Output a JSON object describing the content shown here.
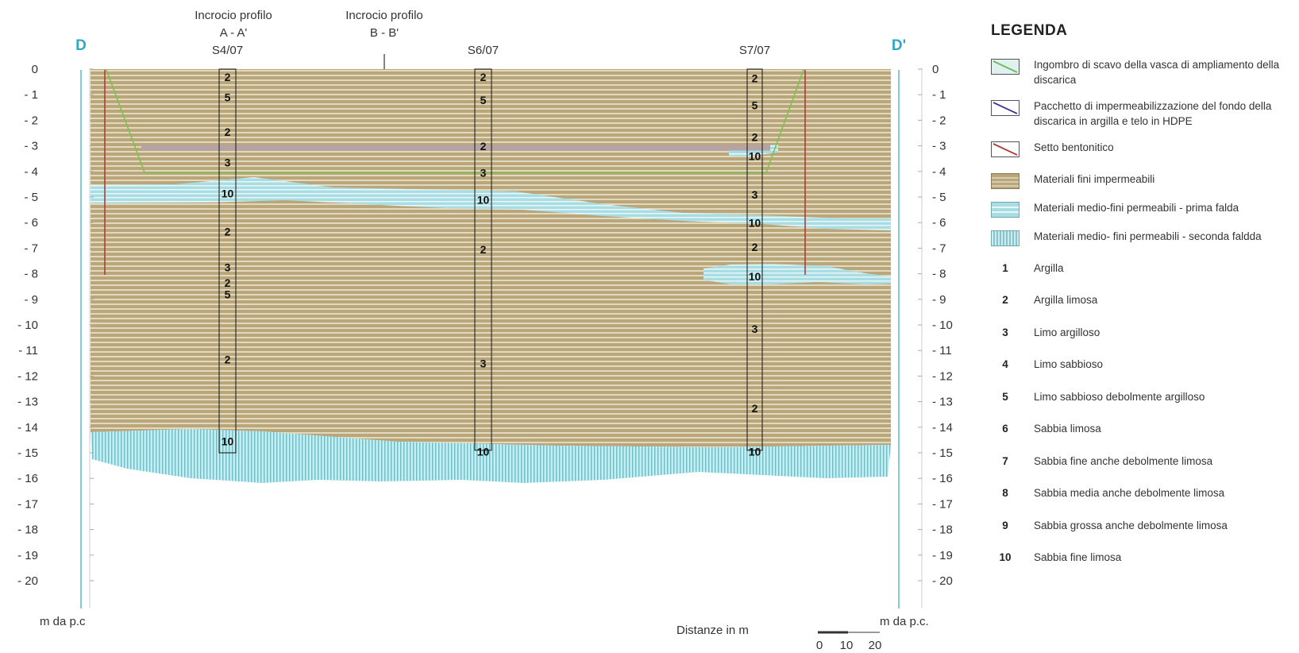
{
  "diagram": {
    "section_start": "D",
    "section_end": "D'",
    "depth_labels": [
      "0",
      "- 1",
      "- 2",
      "- 3",
      "- 4",
      "- 5",
      "- 6",
      "- 7",
      "- 8",
      "- 9",
      "- 10",
      "- 11",
      "- 12",
      "- 13",
      "- 14",
      "- 15",
      "- 16",
      "- 17",
      "- 18",
      "- 19",
      "- 20"
    ],
    "crossings": [
      {
        "line1": "Incrocio profilo",
        "line2": "A - A'"
      },
      {
        "line1": "Incrocio profilo",
        "line2": "B - B'"
      }
    ],
    "boreholes": [
      {
        "name": "S4/07",
        "codes": [
          {
            "code": "2",
            "depth": 0.15
          },
          {
            "code": "5",
            "depth": 0.95
          },
          {
            "code": "2",
            "depth": 2.3
          },
          {
            "code": "3",
            "depth": 3.5
          },
          {
            "code": "10",
            "depth": 4.7
          },
          {
            "code": "2",
            "depth": 6.2
          },
          {
            "code": "3",
            "depth": 7.6
          },
          {
            "code": "2",
            "depth": 8.2
          },
          {
            "code": "5",
            "depth": 8.65
          },
          {
            "code": "2",
            "depth": 11.2
          },
          {
            "code": "10",
            "depth": 14.4
          }
        ]
      },
      {
        "name": "S6/07",
        "codes": [
          {
            "code": "2",
            "depth": 0.15
          },
          {
            "code": "5",
            "depth": 1.05
          },
          {
            "code": "2",
            "depth": 2.85
          },
          {
            "code": "3",
            "depth": 3.9
          },
          {
            "code": "10",
            "depth": 4.95
          },
          {
            "code": "2",
            "depth": 6.9
          },
          {
            "code": "3",
            "depth": 11.35
          },
          {
            "code": "10",
            "depth": 14.8
          }
        ]
      },
      {
        "name": "S7/07",
        "codes": [
          {
            "code": "2",
            "depth": 0.2
          },
          {
            "code": "5",
            "depth": 1.25
          },
          {
            "code": "2",
            "depth": 2.5
          },
          {
            "code": "10",
            "depth": 3.25
          },
          {
            "code": "3",
            "depth": 4.75
          },
          {
            "code": "10",
            "depth": 5.85
          },
          {
            "code": "2",
            "depth": 6.8
          },
          {
            "code": "10",
            "depth": 7.95
          },
          {
            "code": "3",
            "depth": 10.0
          },
          {
            "code": "2",
            "depth": 13.1
          },
          {
            "code": "10",
            "depth": 14.8
          }
        ]
      }
    ],
    "left_axis_unit": "m da p.c",
    "right_axis_unit": "m da p.c.",
    "scale_label": "Distanze in m",
    "scale_ticks": [
      "0",
      "10",
      "20"
    ]
  },
  "legend": {
    "title": "LEGENDA",
    "symbols": [
      {
        "label": "Ingombro di scavo della vasca di ampliamento della discarica",
        "kind": "excavation",
        "color": "#6cb85a"
      },
      {
        "label": "Pacchetto di impermeabilizzazione del fondo della discarica in argilla e telo in HDPE",
        "kind": "liner",
        "color": "#3b3b8f"
      },
      {
        "label": "Setto bentonitico",
        "kind": "bentonite",
        "color": "#b23a3a"
      },
      {
        "label": "Materiali fini impermeabili",
        "kind": "fine",
        "color": "#b8a57a"
      },
      {
        "label": "Materiali medio-fini permeabili - prima falda",
        "kind": "first",
        "color": "#a9dbe0"
      },
      {
        "label": "Materiali medio- fini permeabili - seconda faldda",
        "kind": "second",
        "color": "#b4e0e6"
      }
    ],
    "codes": [
      {
        "num": "1",
        "label": "Argilla"
      },
      {
        "num": "2",
        "label": "Argilla limosa"
      },
      {
        "num": "3",
        "label": "Limo argilloso"
      },
      {
        "num": "4",
        "label": "Limo sabbioso"
      },
      {
        "num": "5",
        "label": "Limo sabbioso debolmente argilloso"
      },
      {
        "num": "6",
        "label": "Sabbia limosa"
      },
      {
        "num": "7",
        "label": "Sabbia fine anche debolmente limosa"
      },
      {
        "num": "8",
        "label": "Sabbia media anche debolmente limosa"
      },
      {
        "num": "9",
        "label": "Sabbia grossa anche debolmente limosa"
      },
      {
        "num": "10",
        "label": "Sabbia fine limosa"
      }
    ]
  }
}
